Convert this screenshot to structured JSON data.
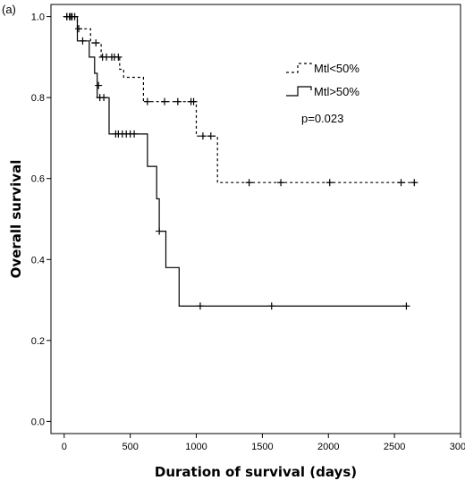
{
  "panel_label": "(a)",
  "chart_data": {
    "type": "line",
    "title": "",
    "xlabel": "Duration of survival (days)",
    "ylabel": "Overall survival",
    "xlim": [
      -100,
      3000
    ],
    "ylim": [
      -0.03,
      1.03
    ],
    "xticks": [
      0,
      500,
      1000,
      1500,
      2000,
      2500,
      3000
    ],
    "yticks": [
      0.0,
      0.2,
      0.4,
      0.6,
      0.8,
      1.0
    ],
    "legend_position": "top-right",
    "annotation": "p=0.023",
    "series": [
      {
        "name": "Mtl<50%",
        "style": "dotted",
        "steps": [
          [
            0,
            1.0
          ],
          [
            100,
            0.97
          ],
          [
            200,
            0.935
          ],
          [
            280,
            0.9
          ],
          [
            420,
            0.87
          ],
          [
            450,
            0.85
          ],
          [
            600,
            0.79
          ],
          [
            1000,
            0.705
          ],
          [
            1160,
            0.59
          ],
          [
            2660,
            0.59
          ]
        ],
        "censored": [
          [
            20,
            1.0
          ],
          [
            40,
            1.0
          ],
          [
            60,
            1.0
          ],
          [
            80,
            1.0
          ],
          [
            110,
            0.97
          ],
          [
            240,
            0.935
          ],
          [
            290,
            0.9
          ],
          [
            320,
            0.9
          ],
          [
            360,
            0.9
          ],
          [
            380,
            0.9
          ],
          [
            410,
            0.9
          ],
          [
            630,
            0.79
          ],
          [
            760,
            0.79
          ],
          [
            860,
            0.79
          ],
          [
            960,
            0.79
          ],
          [
            980,
            0.79
          ],
          [
            1050,
            0.705
          ],
          [
            1110,
            0.705
          ],
          [
            1400,
            0.59
          ],
          [
            1640,
            0.59
          ],
          [
            2010,
            0.59
          ],
          [
            2550,
            0.59
          ],
          [
            2650,
            0.59
          ]
        ]
      },
      {
        "name": "Mtl>50%",
        "style": "solid",
        "steps": [
          [
            0,
            1.0
          ],
          [
            100,
            0.94
          ],
          [
            190,
            0.9
          ],
          [
            230,
            0.86
          ],
          [
            250,
            0.8
          ],
          [
            340,
            0.71
          ],
          [
            630,
            0.63
          ],
          [
            700,
            0.55
          ],
          [
            720,
            0.47
          ],
          [
            770,
            0.38
          ],
          [
            870,
            0.285
          ],
          [
            2600,
            0.285
          ]
        ],
        "censored": [
          [
            20,
            1.0
          ],
          [
            50,
            1.0
          ],
          [
            140,
            0.94
          ],
          [
            260,
            0.83
          ],
          [
            270,
            0.8
          ],
          [
            300,
            0.8
          ],
          [
            390,
            0.71
          ],
          [
            410,
            0.71
          ],
          [
            440,
            0.71
          ],
          [
            470,
            0.71
          ],
          [
            500,
            0.71
          ],
          [
            530,
            0.71
          ],
          [
            720,
            0.47
          ],
          [
            1030,
            0.285
          ],
          [
            1570,
            0.285
          ],
          [
            2590,
            0.285
          ]
        ]
      }
    ]
  }
}
